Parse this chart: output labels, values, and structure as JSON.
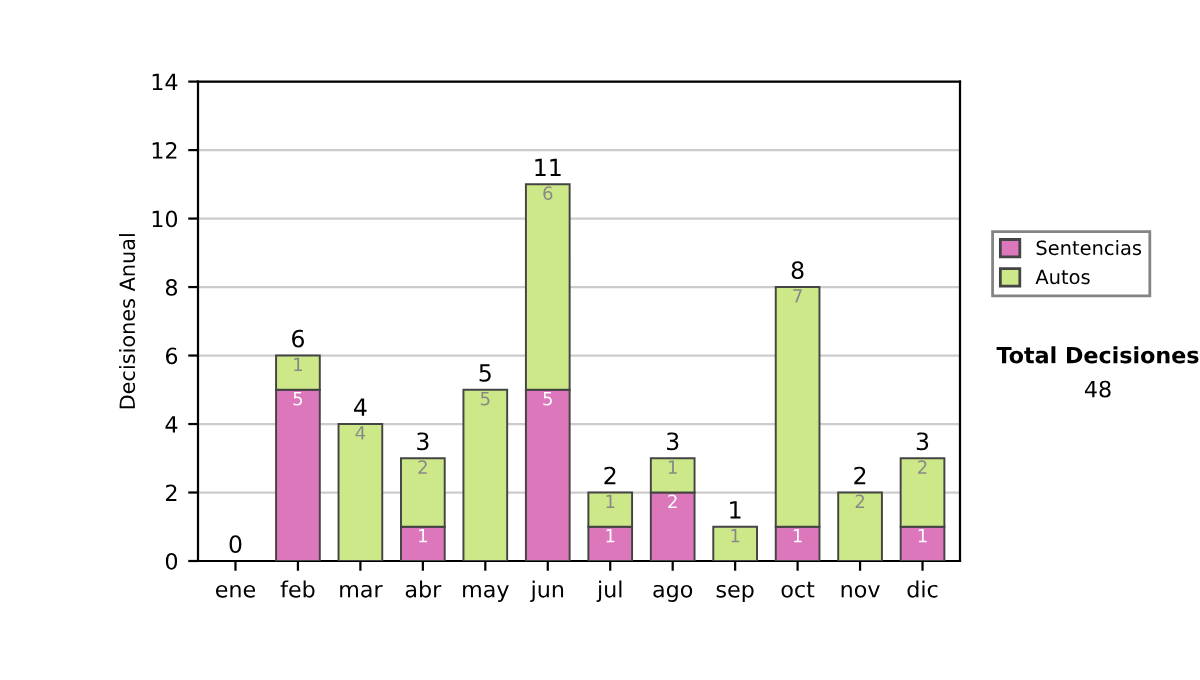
{
  "chart_data": {
    "type": "bar",
    "ylabel": "Decisiones Anual",
    "categories": [
      "ene",
      "feb",
      "mar",
      "abr",
      "may",
      "jun",
      "jul",
      "ago",
      "sep",
      "oct",
      "nov",
      "dic"
    ],
    "stacked": true,
    "series": [
      {
        "name": "Sentencias",
        "color": "#dd77bb",
        "values": [
          0,
          5,
          0,
          1,
          0,
          5,
          1,
          2,
          0,
          1,
          0,
          1
        ],
        "value_labels": [
          null,
          "5",
          null,
          "1",
          null,
          "5",
          "1",
          "2",
          null,
          "1",
          null,
          "1"
        ]
      },
      {
        "name": "Autos",
        "color": "#cce888",
        "values": [
          0,
          1,
          4,
          2,
          5,
          6,
          1,
          1,
          1,
          7,
          2,
          2
        ],
        "value_labels": [
          null,
          "1",
          "4",
          "2",
          "5",
          "6",
          "1",
          "1",
          "1",
          "7",
          "2",
          "2"
        ]
      }
    ],
    "totals": [
      "0",
      "6",
      "4",
      "3",
      "5",
      "11",
      "2",
      "3",
      "1",
      "8",
      "2",
      "3"
    ],
    "ylim": [
      0,
      14
    ],
    "yticks": [
      0,
      2,
      4,
      6,
      8,
      10,
      12,
      14
    ],
    "grid": "y",
    "legend": "right",
    "annotations": [
      "Total Decisiones",
      "48"
    ]
  }
}
